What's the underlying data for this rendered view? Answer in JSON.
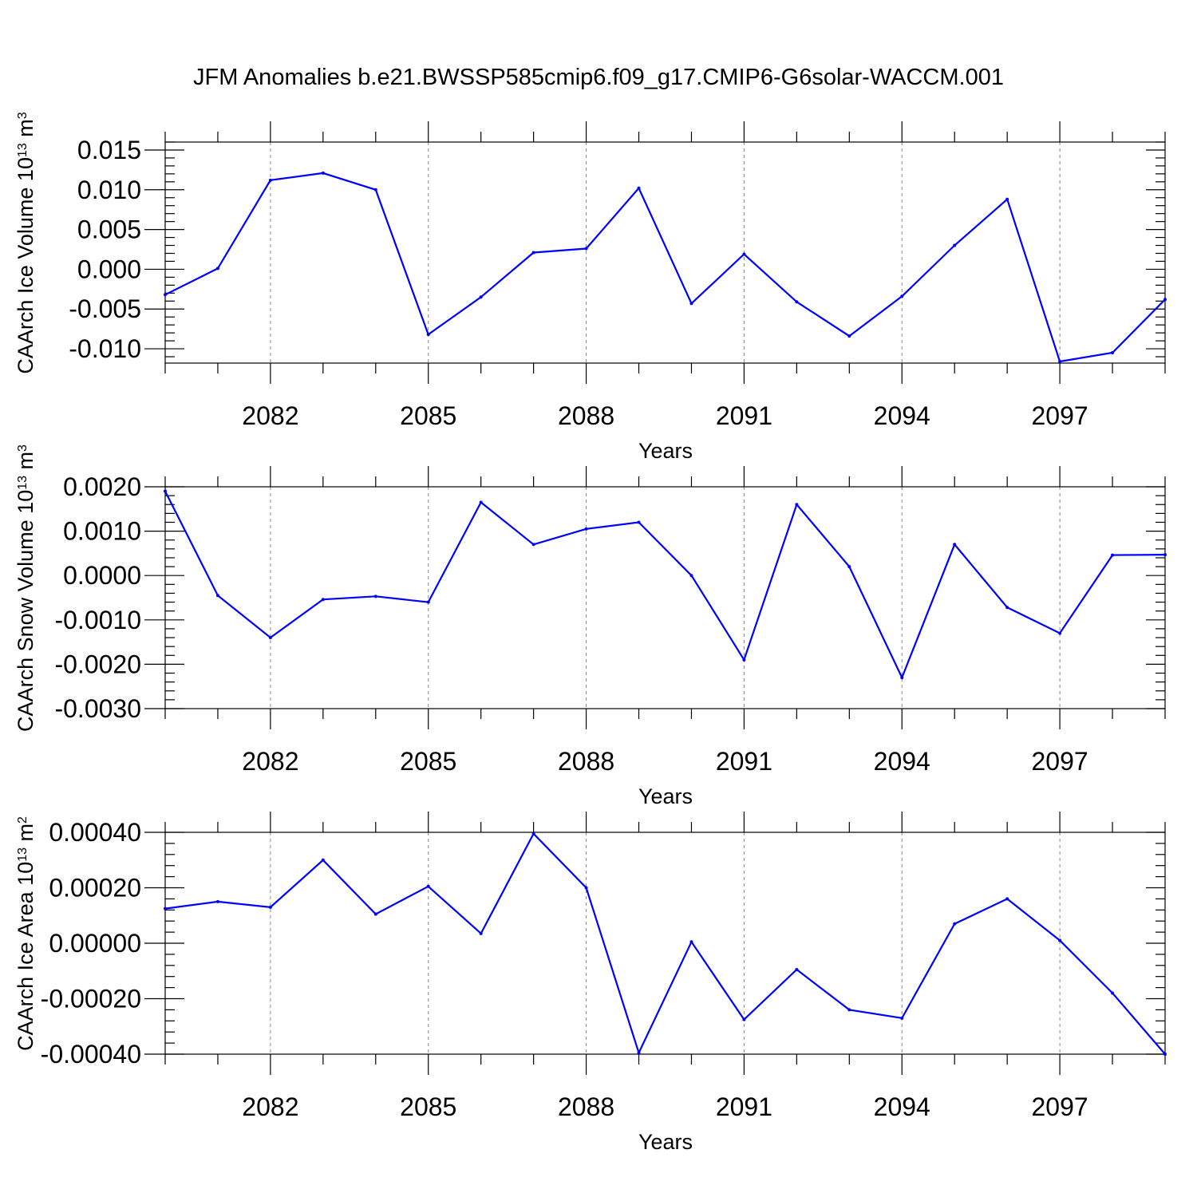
{
  "title": "JFM Anomalies b.e21.BWSSP585cmip6.f09_g17.CMIP6-G6solar-WACCM.001",
  "line_color": "#0000ff",
  "chart_data": [
    {
      "type": "line",
      "ylabel": "CAArch Ice Volume 10",
      "ylabel_sup": "13",
      "ylabel_unit": " m",
      "ylabel_unit_sup": "3",
      "xlabel": "Years",
      "xlim": [
        2080,
        2099
      ],
      "ylim": [
        -0.0118,
        0.016
      ],
      "yticks": [
        -0.01,
        -0.005,
        0.0,
        0.005,
        0.01,
        0.015
      ],
      "yticklabels": [
        "-0.010",
        "-0.005",
        "0.000",
        "0.005",
        "0.010",
        "0.015"
      ],
      "xticks": [
        2082,
        2085,
        2088,
        2091,
        2094,
        2097
      ],
      "xticklabels": [
        "2082",
        "2085",
        "2088",
        "2091",
        "2094",
        "2097"
      ],
      "grid": "vertical-dashed",
      "x": [
        2080,
        2081,
        2082,
        2083,
        2084,
        2085,
        2086,
        2087,
        2088,
        2089,
        2090,
        2091,
        2092,
        2093,
        2094,
        2095,
        2096,
        2097,
        2098,
        2099
      ],
      "values": [
        -0.0032,
        0.0001,
        0.0112,
        0.0121,
        0.01,
        -0.0082,
        -0.0035,
        0.0021,
        0.0026,
        0.0102,
        -0.0043,
        0.0019,
        -0.0041,
        -0.0084,
        -0.0034,
        0.003,
        0.0088,
        -0.0116,
        -0.0105,
        -0.0038
      ]
    },
    {
      "type": "line",
      "ylabel": "CAArch Snow Volume 10",
      "ylabel_sup": "13",
      "ylabel_unit": " m",
      "ylabel_unit_sup": "3",
      "xlabel": "Years",
      "xlim": [
        2080,
        2099
      ],
      "ylim": [
        -0.003,
        0.002
      ],
      "yticks": [
        -0.003,
        -0.002,
        -0.001,
        0.0,
        0.001,
        0.002
      ],
      "yticklabels": [
        "-0.0030",
        "-0.0020",
        "-0.0010",
        "0.0000",
        "0.0010",
        "0.0020"
      ],
      "xticks": [
        2082,
        2085,
        2088,
        2091,
        2094,
        2097
      ],
      "xticklabels": [
        "2082",
        "2085",
        "2088",
        "2091",
        "2094",
        "2097"
      ],
      "grid": "vertical-dashed",
      "x": [
        2080,
        2081,
        2082,
        2083,
        2084,
        2085,
        2086,
        2087,
        2088,
        2089,
        2090,
        2091,
        2092,
        2093,
        2094,
        2095,
        2096,
        2097,
        2098,
        2099
      ],
      "values": [
        0.0019,
        -0.00045,
        -0.0014,
        -0.00054,
        -0.00047,
        -0.0006,
        0.00165,
        0.0007,
        0.00105,
        0.0012,
        0.0,
        -0.0019,
        0.0016,
        0.0002,
        -0.0023,
        0.0007,
        -0.00072,
        -0.0013,
        0.00046,
        0.00047
      ]
    },
    {
      "type": "line",
      "ylabel": "CAArch Ice Area 10",
      "ylabel_sup": "13",
      "ylabel_unit": " m",
      "ylabel_unit_sup": "2",
      "xlabel": "Years",
      "xlim": [
        2080,
        2099
      ],
      "ylim": [
        -0.0004,
        0.0004
      ],
      "yticks": [
        -0.0004,
        -0.0002,
        0.0,
        0.0002,
        0.0004
      ],
      "yticklabels": [
        "-0.00040",
        "-0.00020",
        "0.00000",
        "0.00020",
        "0.00040"
      ],
      "xticks": [
        2082,
        2085,
        2088,
        2091,
        2094,
        2097
      ],
      "xticklabels": [
        "2082",
        "2085",
        "2088",
        "2091",
        "2094",
        "2097"
      ],
      "grid": "vertical-dashed",
      "x": [
        2080,
        2081,
        2082,
        2083,
        2084,
        2085,
        2086,
        2087,
        2088,
        2089,
        2090,
        2091,
        2092,
        2093,
        2094,
        2095,
        2096,
        2097,
        2098,
        2099
      ],
      "values": [
        0.000125,
        0.00015,
        0.00013,
        0.0003,
        0.000105,
        0.000205,
        3.5e-05,
        0.000395,
        0.0002,
        -0.000395,
        5e-06,
        -0.000275,
        -9.5e-05,
        -0.00024,
        -0.00027,
        7e-05,
        0.00016,
        1e-05,
        -0.00018,
        -0.0004
      ]
    }
  ]
}
